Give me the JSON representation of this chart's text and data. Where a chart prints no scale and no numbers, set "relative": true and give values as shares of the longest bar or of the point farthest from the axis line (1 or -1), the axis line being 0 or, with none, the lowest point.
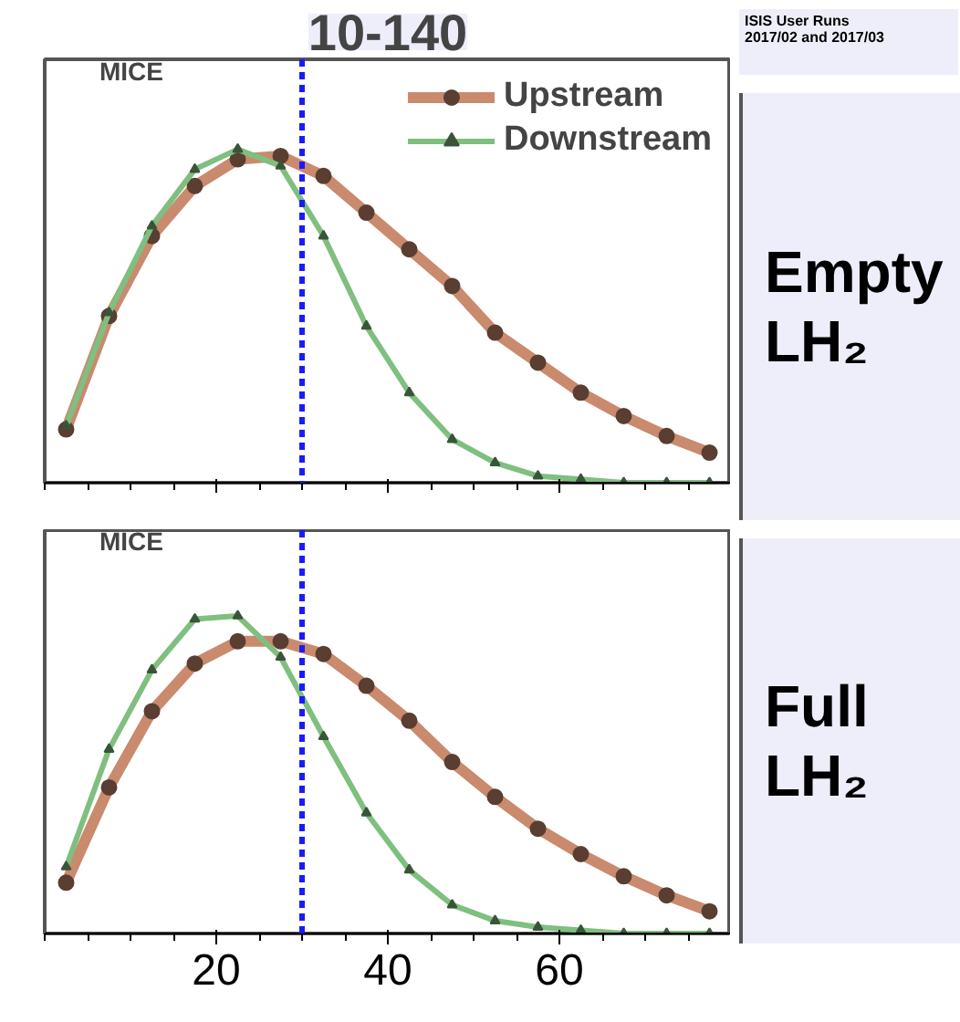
{
  "chart_data": [
    {
      "type": "line",
      "title": "10-140",
      "annotations": [
        "MICE",
        "ISIS User Runs\n2017/02 and 2017/03",
        "Empty LH₂"
      ],
      "relative": true,
      "x": [
        2.5,
        7.5,
        12.5,
        17.5,
        22.5,
        27.5,
        32.5,
        37.5,
        42.5,
        47.5,
        52.5,
        57.5,
        62.5,
        67.5,
        72.5,
        77.5
      ],
      "xlim": [
        0,
        80
      ],
      "xticks": [
        20,
        40,
        60
      ],
      "tick_labels": false,
      "legend": "top right",
      "ref_lines": [
        {
          "axis": "x",
          "value": 30,
          "color": "#1a1aff",
          "line_style": "dotted"
        }
      ],
      "series": [
        {
          "name": "Upstream",
          "color": "#c98a6e",
          "marker": "circle",
          "values": [
            0.16,
            0.5,
            0.74,
            0.89,
            0.97,
            0.98,
            0.92,
            0.81,
            0.7,
            0.59,
            0.45,
            0.36,
            0.27,
            0.2,
            0.14,
            0.09
          ]
        },
        {
          "name": "Downstream",
          "color": "#7fbf7f",
          "marker": "triangle",
          "values": [
            0.17,
            0.51,
            0.77,
            0.94,
            1.0,
            0.95,
            0.74,
            0.47,
            0.27,
            0.13,
            0.06,
            0.02,
            0.01,
            0,
            0,
            0
          ]
        }
      ]
    },
    {
      "type": "line",
      "annotations": [
        "MICE",
        "Full LH₂"
      ],
      "relative": true,
      "x": [
        2.5,
        7.5,
        12.5,
        17.5,
        22.5,
        27.5,
        32.5,
        37.5,
        42.5,
        47.5,
        52.5,
        57.5,
        62.5,
        67.5,
        72.5,
        77.5
      ],
      "xlim": [
        0,
        80
      ],
      "xticks": [
        20,
        40,
        60
      ],
      "tick_labels": "x",
      "ref_lines": [
        {
          "axis": "x",
          "value": 30,
          "color": "#1a1aff",
          "line_style": "dotted"
        }
      ],
      "series": [
        {
          "color": "#c98a6e",
          "marker": "circle",
          "values": [
            0.16,
            0.46,
            0.7,
            0.85,
            0.92,
            0.92,
            0.88,
            0.78,
            0.67,
            0.54,
            0.43,
            0.33,
            0.25,
            0.18,
            0.12,
            0.07
          ]
        },
        {
          "color": "#7fbf7f",
          "marker": "triangle",
          "values": [
            0.21,
            0.58,
            0.83,
            0.99,
            1.0,
            0.87,
            0.62,
            0.38,
            0.2,
            0.09,
            0.04,
            0.02,
            0.01,
            0,
            0,
            0
          ]
        }
      ]
    }
  ]
}
